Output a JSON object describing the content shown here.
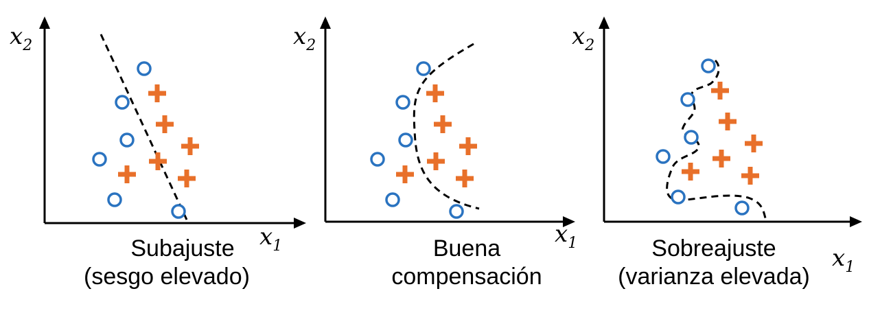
{
  "axis_labels": {
    "x_main": "x",
    "x_sub": "1",
    "y_main": "x",
    "y_sub": "2"
  },
  "colors": {
    "class_circle": "#2a73c0",
    "class_plus": "#e8702a"
  },
  "panels": [
    {
      "caption_line1": "Subajuste",
      "caption_line2": "(sesgo elevado)"
    },
    {
      "caption_line1": "Buena",
      "caption_line2": "compensación"
    },
    {
      "caption_line1": "Sobreajuste",
      "caption_line2": "(varianza elevada)"
    }
  ]
}
